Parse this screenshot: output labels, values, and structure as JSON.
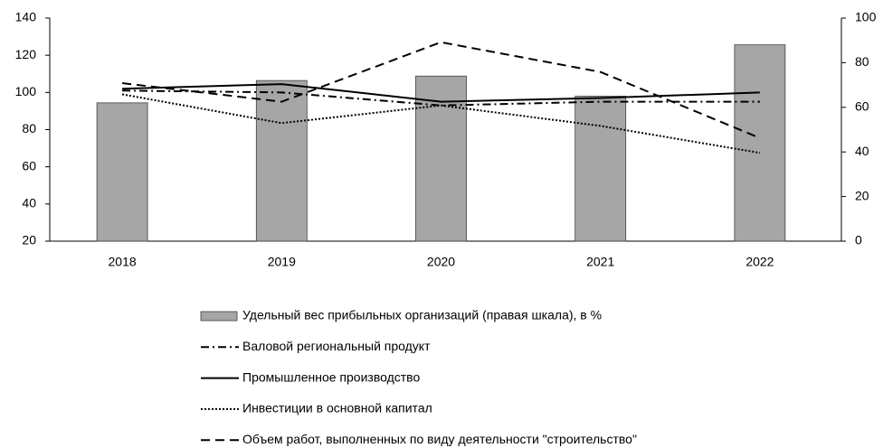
{
  "chart_data": {
    "type": "bar-line",
    "categories": [
      "2018",
      "2019",
      "2020",
      "2021",
      "2022"
    ],
    "series": [
      {
        "name": "Удельный вес прибыльных организаций (правая шкала), в %",
        "type": "bar",
        "axis": "y2",
        "color": "#a6a6a6",
        "values": [
          62,
          72,
          74,
          65,
          88
        ]
      },
      {
        "name": "Валовой региональный продукт",
        "type": "line",
        "dash": "dashdot",
        "color": "#000000",
        "values": [
          101,
          100,
          93,
          95,
          95
        ]
      },
      {
        "name": "Промышленное производство",
        "type": "line",
        "dash": "solid",
        "color": "#000000",
        "values": [
          102,
          104.5,
          95,
          97,
          100
        ]
      },
      {
        "name": "Инвестиции в основной капитал",
        "type": "line",
        "dash": "dotted",
        "color": "#000000",
        "values": [
          99,
          83.5,
          93,
          82,
          67.5
        ]
      },
      {
        "name": "Объем работ, выполненных по виду деятельности \"строительство\"",
        "type": "line",
        "dash": "dashed",
        "color": "#000000",
        "values": [
          105,
          95,
          127,
          111,
          75.5
        ]
      }
    ],
    "ylim": [
      20,
      140
    ],
    "yticks": [
      20,
      40,
      60,
      80,
      100,
      120,
      140
    ],
    "y2lim": [
      0,
      100
    ],
    "y2ticks": [
      0,
      20,
      40,
      60,
      80,
      100
    ],
    "grid": false,
    "legend": "bottom"
  }
}
